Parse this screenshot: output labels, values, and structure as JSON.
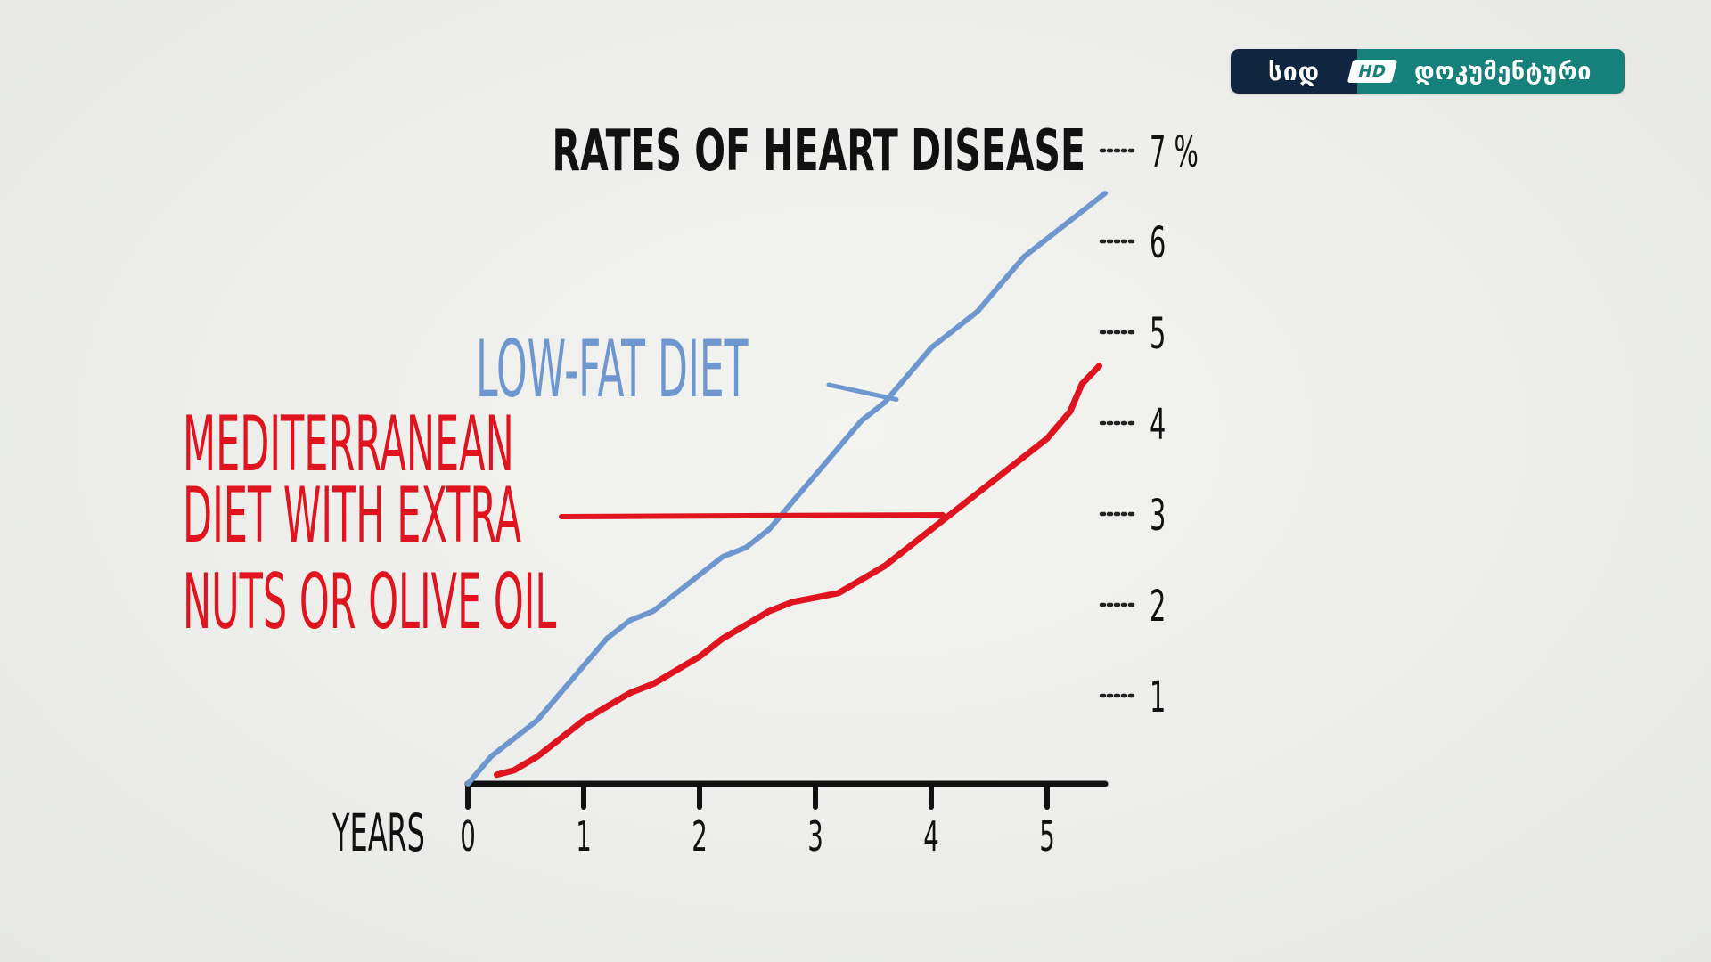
{
  "logo": {
    "left_text": "სიდ",
    "hd_text": "HD",
    "right_text": "დოკუმენტური",
    "colors": {
      "left": "#0f2540",
      "right": "#16807a"
    }
  },
  "chart_data": {
    "type": "line",
    "title": "RATES OF HEART DISEASE",
    "xlabel": "YEARS",
    "ylabel": "",
    "xlim": [
      0,
      5.5
    ],
    "ylim": [
      0,
      7
    ],
    "x_ticks": [
      "0",
      "1",
      "2",
      "3",
      "4",
      "5"
    ],
    "y_ticks": [
      "1",
      "2",
      "3",
      "4",
      "5",
      "6",
      "7 %"
    ],
    "grid": false,
    "series": [
      {
        "name": "LOW-FAT DIET",
        "color": "#6f97cf",
        "x": [
          0,
          0.2,
          0.4,
          0.6,
          0.8,
          1.0,
          1.2,
          1.4,
          1.6,
          1.8,
          2.0,
          2.2,
          2.4,
          2.6,
          2.8,
          3.0,
          3.2,
          3.4,
          3.6,
          3.8,
          4.0,
          4.2,
          4.4,
          4.6,
          4.8,
          5.0,
          5.2,
          5.4,
          5.5
        ],
        "values": [
          0.0,
          0.3,
          0.5,
          0.7,
          1.0,
          1.3,
          1.6,
          1.8,
          1.9,
          2.1,
          2.3,
          2.5,
          2.6,
          2.8,
          3.1,
          3.4,
          3.7,
          4.0,
          4.2,
          4.5,
          4.8,
          5.0,
          5.2,
          5.5,
          5.8,
          6.0,
          6.2,
          6.4,
          6.5
        ]
      },
      {
        "name": "MEDITERRANEAN DIET WITH EXTRA NUTS OR OLIVE OIL",
        "color": "#e0141e",
        "x": [
          0.25,
          0.4,
          0.6,
          0.8,
          1.0,
          1.2,
          1.4,
          1.6,
          1.8,
          2.0,
          2.2,
          2.4,
          2.6,
          2.8,
          3.0,
          3.2,
          3.4,
          3.6,
          3.8,
          4.0,
          4.2,
          4.4,
          4.6,
          4.8,
          5.0,
          5.2,
          5.3,
          5.45
        ],
        "values": [
          0.1,
          0.15,
          0.3,
          0.5,
          0.7,
          0.85,
          1.0,
          1.1,
          1.25,
          1.4,
          1.6,
          1.75,
          1.9,
          2.0,
          2.05,
          2.1,
          2.25,
          2.4,
          2.6,
          2.8,
          3.0,
          3.2,
          3.4,
          3.6,
          3.8,
          4.1,
          4.4,
          4.6
        ]
      }
    ],
    "annotations": [
      {
        "series": 0,
        "text": "LOW-FAT DIET",
        "points_to_x": 3.7
      },
      {
        "series": 1,
        "lines": [
          "MEDITERRANEAN",
          "DIET WITH EXTRA",
          "NUTS OR OLIVE OIL"
        ],
        "points_to_x": 4.1
      }
    ]
  }
}
